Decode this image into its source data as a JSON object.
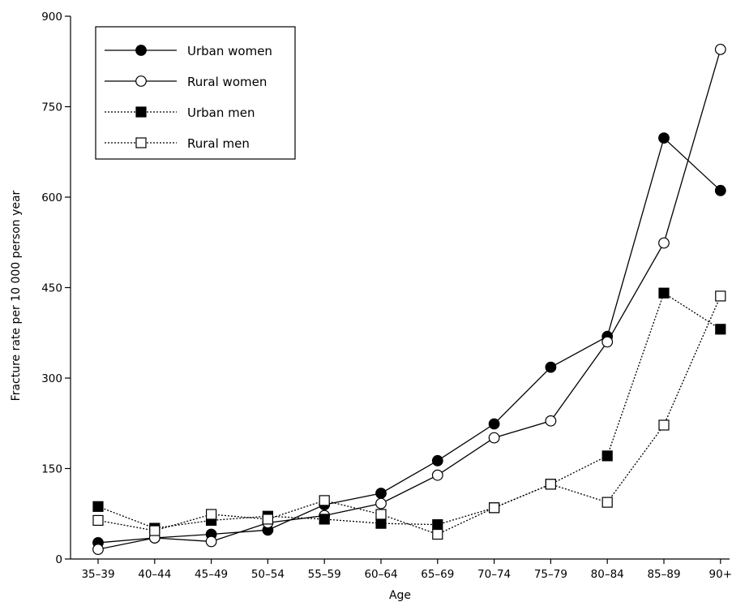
{
  "chart_data": {
    "type": "line",
    "title": "",
    "xlabel": "Age",
    "ylabel": "Fracture rate per 10 000 person year",
    "categories": [
      "35–39",
      "40–44",
      "45–49",
      "50–54",
      "55–59",
      "60–64",
      "65–69",
      "70–74",
      "75–79",
      "80–84",
      "85–89",
      "90+"
    ],
    "ylim": [
      0,
      900
    ],
    "yticks": [
      0,
      150,
      300,
      450,
      600,
      750,
      900
    ],
    "legend_position": "top-left",
    "grid": false,
    "series": [
      {
        "name": "Urban women",
        "marker": "filled-circle",
        "line": "solid",
        "values": [
          27,
          35,
          41,
          48,
          90,
          109,
          163,
          224,
          318,
          369,
          698,
          611
        ]
      },
      {
        "name": "Rural women",
        "marker": "open-circle",
        "line": "solid",
        "values": [
          16,
          35,
          29,
          60,
          72,
          92,
          139,
          201,
          229,
          360,
          524,
          845
        ]
      },
      {
        "name": "Urban men",
        "marker": "filled-square",
        "line": "dotted",
        "values": [
          87,
          51,
          64,
          71,
          66,
          59,
          57,
          85,
          124,
          171,
          441,
          381
        ]
      },
      {
        "name": "Rural men",
        "marker": "open-square",
        "line": "dotted",
        "values": [
          64,
          47,
          74,
          66,
          97,
          74,
          41,
          85,
          124,
          94,
          222,
          436
        ]
      }
    ]
  }
}
